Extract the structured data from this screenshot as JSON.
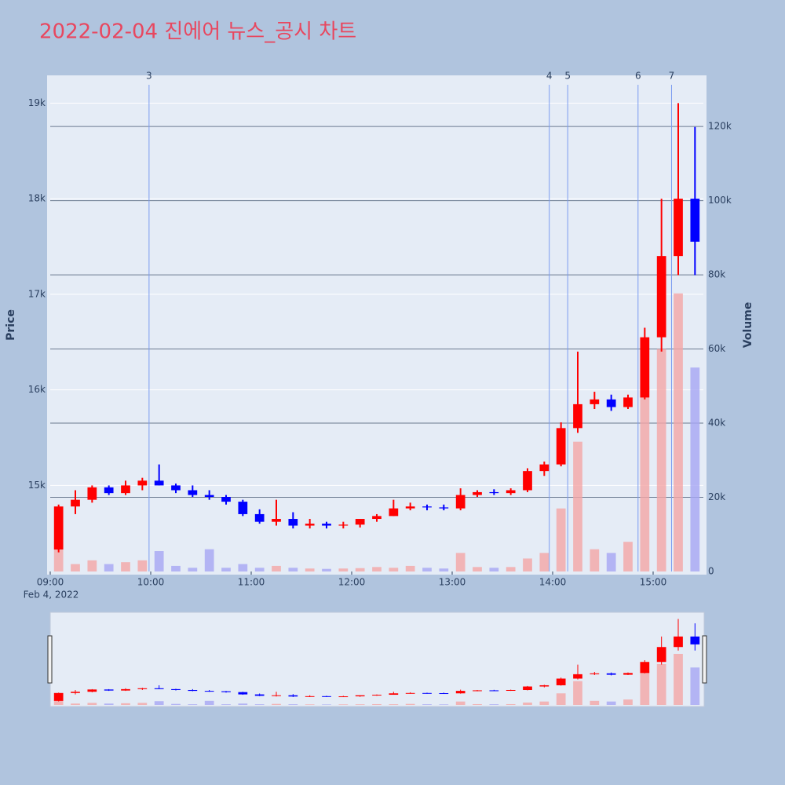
{
  "chart_data": {
    "type": "candlestick",
    "title": "2022-02-04 진에어 뉴스_공시 차트",
    "y_title": "Price",
    "y2_title": "Volume",
    "x_date_label": "Feb 4, 2022",
    "x": [
      "2022-02-04 09:00",
      "2022-02-04 09:10",
      "2022-02-04 09:20",
      "2022-02-04 09:30",
      "2022-02-04 09:40",
      "2022-02-04 09:50",
      "2022-02-04 10:00",
      "2022-02-04 10:10",
      "2022-02-04 10:20",
      "2022-02-04 10:30",
      "2022-02-04 10:40",
      "2022-02-04 10:50",
      "2022-02-04 11:00",
      "2022-02-04 11:10",
      "2022-02-04 11:20",
      "2022-02-04 11:30",
      "2022-02-04 11:40",
      "2022-02-04 11:50",
      "2022-02-04 12:00",
      "2022-02-04 12:10",
      "2022-02-04 12:20",
      "2022-02-04 12:30",
      "2022-02-04 12:40",
      "2022-02-04 12:50",
      "2022-02-04 13:00",
      "2022-02-04 13:10",
      "2022-02-04 13:20",
      "2022-02-04 13:30",
      "2022-02-04 13:40",
      "2022-02-04 13:50",
      "2022-02-04 14:00",
      "2022-02-04 14:10",
      "2022-02-04 14:20",
      "2022-02-04 14:30",
      "2022-02-04 14:40",
      "2022-02-04 14:50",
      "2022-02-04 15:00",
      "2022-02-04 15:10",
      "2022-02-04 15:20"
    ],
    "open": [
      14330,
      14780,
      14850,
      14980,
      14920,
      15000,
      15050,
      15000,
      14950,
      14900,
      14880,
      14830,
      14700,
      14620,
      14650,
      14580,
      14600,
      14580,
      14590,
      14650,
      14680,
      14760,
      14780,
      14770,
      14760,
      14900,
      14930,
      14920,
      14950,
      15150,
      15220,
      15600,
      15850,
      15900,
      15820,
      15920,
      16550,
      17400,
      18000
    ],
    "high": [
      14800,
      14950,
      15000,
      15000,
      15050,
      15080,
      15220,
      15020,
      15000,
      14950,
      14900,
      14850,
      14750,
      14850,
      14720,
      14650,
      14620,
      14620,
      14650,
      14700,
      14850,
      14820,
      14800,
      14800,
      14970,
      14950,
      14960,
      14970,
      15180,
      15250,
      15660,
      16400,
      15980,
      15950,
      15950,
      16650,
      18000,
      19000,
      18750
    ],
    "low": [
      14300,
      14700,
      14820,
      14900,
      14900,
      14950,
      15000,
      14920,
      14880,
      14850,
      14800,
      14680,
      14600,
      14580,
      14550,
      14550,
      14550,
      14550,
      14560,
      14620,
      14680,
      14740,
      14740,
      14740,
      14740,
      14880,
      14900,
      14900,
      14930,
      15100,
      15200,
      15550,
      15800,
      15780,
      15800,
      15900,
      16400,
      17200,
      17200
    ],
    "close": [
      14780,
      14850,
      14980,
      14920,
      15000,
      15050,
      15000,
      14950,
      14900,
      14880,
      14830,
      14700,
      14620,
      14650,
      14580,
      14600,
      14580,
      14590,
      14650,
      14680,
      14760,
      14780,
      14770,
      14760,
      14900,
      14930,
      14920,
      14950,
      15150,
      15220,
      15600,
      15850,
      15900,
      15820,
      15920,
      16550,
      17400,
      18000,
      17550
    ],
    "volume": [
      8000,
      2000,
      3000,
      2000,
      2500,
      3000,
      5500,
      1500,
      1000,
      6000,
      1000,
      2000,
      1000,
      1500,
      1000,
      800,
      700,
      800,
      900,
      1200,
      1000,
      1500,
      1000,
      800,
      5000,
      1200,
      1000,
      1200,
      3500,
      5000,
      17000,
      35000,
      6000,
      5000,
      8000,
      50000,
      60000,
      75000,
      55000
    ],
    "increasing_color": "#ff0000",
    "decreasing_color": "#0000ff",
    "volume_increasing_color": "#f4a6a6",
    "volume_decreasing_color": "#a6a6f4",
    "news_line_color": "#7b9cf0",
    "xlim": [
      "2022-02-04 09:00",
      "2022-02-04 15:30"
    ],
    "xticks": [
      {
        "value": "2022-02-04 09:00",
        "label": "09:00"
      },
      {
        "value": "2022-02-04 10:00",
        "label": "10:00"
      },
      {
        "value": "2022-02-04 11:00",
        "label": "11:00"
      },
      {
        "value": "2022-02-04 12:00",
        "label": "12:00"
      },
      {
        "value": "2022-02-04 13:00",
        "label": "13:00"
      },
      {
        "value": "2022-02-04 14:00",
        "label": "14:00"
      },
      {
        "value": "2022-02-04 15:00",
        "label": "15:00"
      }
    ],
    "ylim": [
      14100,
      19290
    ],
    "yticks": [
      {
        "value": 15000,
        "label": "15k"
      },
      {
        "value": 16000,
        "label": "16k"
      },
      {
        "value": 17000,
        "label": "17k"
      },
      {
        "value": 18000,
        "label": "18k"
      },
      {
        "value": 19000,
        "label": "19k"
      }
    ],
    "y2lim": [
      0,
      133800
    ],
    "y2ticks": [
      0,
      {
        "value": 20000,
        "label": "20k"
      },
      {
        "value": 40000,
        "label": "40k"
      },
      {
        "value": 60000,
        "label": "60k"
      },
      {
        "value": 80000,
        "label": "80k"
      },
      {
        "value": 100000,
        "label": "100k"
      },
      {
        "value": 120000,
        "label": "120k"
      }
    ],
    "annotations": [
      {
        "x": "2022-02-04 09:59",
        "label": "3"
      },
      {
        "x": "2022-02-04 13:58",
        "label": "4"
      },
      {
        "x": "2022-02-04 14:09",
        "label": "5"
      },
      {
        "x": "2022-02-04 14:51",
        "label": "6"
      },
      {
        "x": "2022-02-04 15:11",
        "label": "7"
      }
    ],
    "grid": true,
    "rangeslider": true
  }
}
